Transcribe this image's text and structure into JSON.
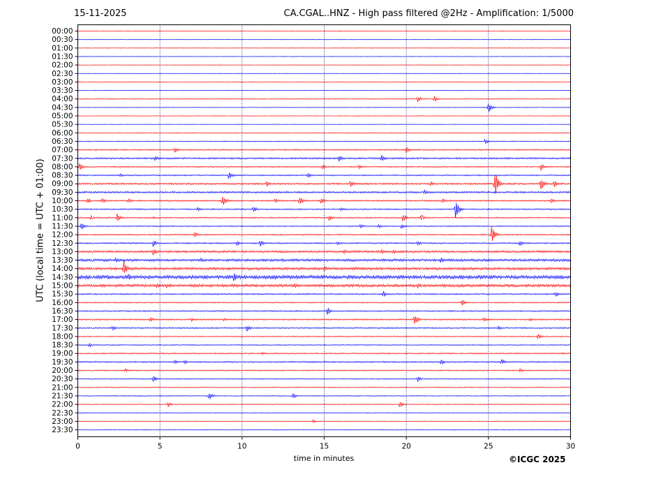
{
  "header": {
    "date": "15-11-2025",
    "title": "CA.CGAL..HNZ - High pass filtered @2Hz - Amplification: 1/5000"
  },
  "footer": {
    "copyright": "©ICGC 2025"
  },
  "chart_data": {
    "type": "line",
    "title": "CA.CGAL..HNZ - High pass filtered @2Hz - Amplification: 1/5000",
    "xlabel": "time in minutes",
    "ylabel": "UTC (local time = UTC + 01:00)",
    "xlim": [
      0,
      30
    ],
    "xticks": [
      0,
      5,
      10,
      15,
      20,
      25,
      30
    ],
    "vertical_gridlines_at": [
      5,
      10,
      15,
      20,
      25
    ],
    "row_labels": [
      "00:00",
      "00:30",
      "01:00",
      "01:30",
      "02:00",
      "02:30",
      "03:00",
      "03:30",
      "04:00",
      "04:30",
      "05:00",
      "05:30",
      "06:00",
      "06:30",
      "07:00",
      "07:30",
      "08:00",
      "08:30",
      "09:00",
      "09:30",
      "10:00",
      "10:30",
      "11:00",
      "11:30",
      "12:00",
      "12:30",
      "13:00",
      "13:30",
      "14:00",
      "14:30",
      "15:00",
      "15:30",
      "16:00",
      "16:30",
      "17:00",
      "17:30",
      "18:00",
      "18:30",
      "19:00",
      "19:30",
      "20:00",
      "20:30",
      "21:00",
      "21:30",
      "22:00",
      "22:30",
      "23:00",
      "23:30"
    ],
    "trace_colors": [
      "#ff0000",
      "#0000ff"
    ],
    "noise_levels": [
      0.3,
      0.3,
      0.3,
      0.3,
      0.3,
      0.3,
      0.3,
      0.4,
      0.6,
      0.4,
      0.4,
      0.4,
      0.5,
      0.6,
      0.9,
      1.2,
      0.9,
      0.9,
      1.2,
      1.3,
      1.0,
      0.9,
      0.9,
      0.8,
      0.9,
      1.0,
      1.5,
      1.8,
      1.8,
      2.5,
      2.0,
      1.0,
      0.8,
      0.9,
      1.0,
      0.9,
      0.7,
      0.7,
      0.9,
      1.0,
      0.8,
      0.7,
      0.6,
      0.6,
      0.6,
      0.5,
      0.5,
      0.5
    ],
    "events": [
      {
        "row": "00:00",
        "t": 15.9,
        "amp": 1
      },
      {
        "row": "04:00",
        "t": 20.7,
        "amp": 5
      },
      {
        "row": "04:00",
        "t": 21.7,
        "amp": 5
      },
      {
        "row": "04:30",
        "t": 25.0,
        "amp": 8
      },
      {
        "row": "06:30",
        "t": 24.8,
        "amp": 4
      },
      {
        "row": "07:00",
        "t": 5.9,
        "amp": 4
      },
      {
        "row": "07:00",
        "t": 20.0,
        "amp": 5
      },
      {
        "row": "07:30",
        "t": 4.7,
        "amp": 4
      },
      {
        "row": "07:30",
        "t": 15.9,
        "amp": 5
      },
      {
        "row": "07:30",
        "t": 18.5,
        "amp": 6
      },
      {
        "row": "07:30",
        "t": 30.0,
        "amp": 4
      },
      {
        "row": "08:00",
        "t": 0.1,
        "amp": 6
      },
      {
        "row": "08:00",
        "t": 14.9,
        "amp": 4
      },
      {
        "row": "08:00",
        "t": 17.1,
        "amp": 4
      },
      {
        "row": "08:00",
        "t": 28.2,
        "amp": 6
      },
      {
        "row": "08:30",
        "t": 2.6,
        "amp": 3
      },
      {
        "row": "08:30",
        "t": 9.2,
        "amp": 7
      },
      {
        "row": "08:30",
        "t": 14.0,
        "amp": 4
      },
      {
        "row": "09:00",
        "t": 11.5,
        "amp": 5
      },
      {
        "row": "09:00",
        "t": 16.6,
        "amp": 6
      },
      {
        "row": "09:00",
        "t": 21.5,
        "amp": 4
      },
      {
        "row": "09:00",
        "t": 25.4,
        "amp": 20
      },
      {
        "row": "09:00",
        "t": 28.2,
        "amp": 11
      },
      {
        "row": "09:00",
        "t": 29.0,
        "amp": 6
      },
      {
        "row": "09:30",
        "t": 21.1,
        "amp": 4
      },
      {
        "row": "10:00",
        "t": 0.6,
        "amp": 4
      },
      {
        "row": "10:00",
        "t": 1.5,
        "amp": 4
      },
      {
        "row": "10:00",
        "t": 3.1,
        "amp": 4
      },
      {
        "row": "10:00",
        "t": 8.8,
        "amp": 9
      },
      {
        "row": "10:00",
        "t": 12.0,
        "amp": 4
      },
      {
        "row": "10:00",
        "t": 13.5,
        "amp": 7
      },
      {
        "row": "10:00",
        "t": 14.8,
        "amp": 5
      },
      {
        "row": "10:00",
        "t": 22.2,
        "amp": 4
      },
      {
        "row": "10:00",
        "t": 28.8,
        "amp": 4
      },
      {
        "row": "10:30",
        "t": 7.3,
        "amp": 3
      },
      {
        "row": "10:30",
        "t": 10.7,
        "amp": 5
      },
      {
        "row": "10:30",
        "t": 16.0,
        "amp": 3
      },
      {
        "row": "10:30",
        "t": 23.0,
        "amp": 14
      },
      {
        "row": "11:00",
        "t": 0.8,
        "amp": 4
      },
      {
        "row": "11:00",
        "t": 2.4,
        "amp": 7
      },
      {
        "row": "11:00",
        "t": 4.6,
        "amp": 2
      },
      {
        "row": "11:00",
        "t": 15.3,
        "amp": 5
      },
      {
        "row": "11:00",
        "t": 19.8,
        "amp": 6
      },
      {
        "row": "11:00",
        "t": 20.9,
        "amp": 5
      },
      {
        "row": "11:30",
        "t": 0.2,
        "amp": 6
      },
      {
        "row": "11:30",
        "t": 17.2,
        "amp": 4
      },
      {
        "row": "11:30",
        "t": 18.3,
        "amp": 4
      },
      {
        "row": "11:30",
        "t": 19.7,
        "amp": 4
      },
      {
        "row": "12:00",
        "t": 7.1,
        "amp": 5
      },
      {
        "row": "12:00",
        "t": 25.2,
        "amp": 13
      },
      {
        "row": "12:30",
        "t": 4.6,
        "amp": 6
      },
      {
        "row": "12:30",
        "t": 9.7,
        "amp": 4
      },
      {
        "row": "12:30",
        "t": 11.1,
        "amp": 6
      },
      {
        "row": "12:30",
        "t": 15.8,
        "amp": 3
      },
      {
        "row": "12:30",
        "t": 20.7,
        "amp": 4
      },
      {
        "row": "12:30",
        "t": 26.9,
        "amp": 5
      },
      {
        "row": "13:00",
        "t": 4.6,
        "amp": 6
      },
      {
        "row": "13:00",
        "t": 16.2,
        "amp": 4
      },
      {
        "row": "13:00",
        "t": 18.5,
        "amp": 4
      },
      {
        "row": "13:00",
        "t": 19.2,
        "amp": 4
      },
      {
        "row": "13:30",
        "t": 2.3,
        "amp": 4
      },
      {
        "row": "13:30",
        "t": 7.5,
        "amp": 3
      },
      {
        "row": "13:30",
        "t": 18.6,
        "amp": 3
      },
      {
        "row": "13:30",
        "t": 22.1,
        "amp": 6
      },
      {
        "row": "14:00",
        "t": 2.8,
        "amp": 14
      },
      {
        "row": "14:00",
        "t": 15.0,
        "amp": 5
      },
      {
        "row": "14:00",
        "t": 17.0,
        "amp": 3
      },
      {
        "row": "14:30",
        "t": 1.8,
        "amp": 4
      },
      {
        "row": "14:30",
        "t": 3.1,
        "amp": 5
      },
      {
        "row": "14:30",
        "t": 9.5,
        "amp": 9
      },
      {
        "row": "14:30",
        "t": 12.0,
        "amp": 4
      },
      {
        "row": "14:30",
        "t": 28.0,
        "amp": 3
      },
      {
        "row": "15:00",
        "t": 4.8,
        "amp": 4
      },
      {
        "row": "15:00",
        "t": 5.4,
        "amp": 4
      },
      {
        "row": "15:00",
        "t": 13.2,
        "amp": 4
      },
      {
        "row": "15:00",
        "t": 20.7,
        "amp": 4
      },
      {
        "row": "15:00",
        "t": 26.2,
        "amp": 3
      },
      {
        "row": "15:00",
        "t": 28.0,
        "amp": 3
      },
      {
        "row": "15:30",
        "t": 18.6,
        "amp": 5
      },
      {
        "row": "15:30",
        "t": 29.1,
        "amp": 4
      },
      {
        "row": "16:00",
        "t": 23.4,
        "amp": 5
      },
      {
        "row": "16:30",
        "t": 15.2,
        "amp": 6
      },
      {
        "row": "17:00",
        "t": 4.4,
        "amp": 4
      },
      {
        "row": "17:00",
        "t": 6.9,
        "amp": 3
      },
      {
        "row": "17:00",
        "t": 8.9,
        "amp": 3
      },
      {
        "row": "17:00",
        "t": 20.5,
        "amp": 10
      },
      {
        "row": "17:00",
        "t": 24.7,
        "amp": 4
      },
      {
        "row": "17:00",
        "t": 27.5,
        "amp": 3
      },
      {
        "row": "17:30",
        "t": 2.1,
        "amp": 4
      },
      {
        "row": "17:30",
        "t": 10.3,
        "amp": 5
      },
      {
        "row": "17:30",
        "t": 25.6,
        "amp": 4
      },
      {
        "row": "18:00",
        "t": 28.0,
        "amp": 5
      },
      {
        "row": "18:30",
        "t": 0.7,
        "amp": 4
      },
      {
        "row": "19:00",
        "t": 11.2,
        "amp": 3
      },
      {
        "row": "19:00",
        "t": 29.5,
        "amp": 2
      },
      {
        "row": "19:30",
        "t": 5.9,
        "amp": 4
      },
      {
        "row": "19:30",
        "t": 6.5,
        "amp": 3
      },
      {
        "row": "19:30",
        "t": 22.1,
        "amp": 5
      },
      {
        "row": "19:30",
        "t": 25.8,
        "amp": 5
      },
      {
        "row": "20:00",
        "t": 2.9,
        "amp": 3
      },
      {
        "row": "20:00",
        "t": 26.9,
        "amp": 4
      },
      {
        "row": "20:30",
        "t": 4.6,
        "amp": 5
      },
      {
        "row": "20:30",
        "t": 20.7,
        "amp": 4
      },
      {
        "row": "21:30",
        "t": 8.0,
        "amp": 6
      },
      {
        "row": "21:30",
        "t": 13.1,
        "amp": 4
      },
      {
        "row": "22:00",
        "t": 5.5,
        "amp": 4
      },
      {
        "row": "22:00",
        "t": 19.6,
        "amp": 5
      },
      {
        "row": "23:00",
        "t": 14.3,
        "amp": 3
      }
    ]
  }
}
